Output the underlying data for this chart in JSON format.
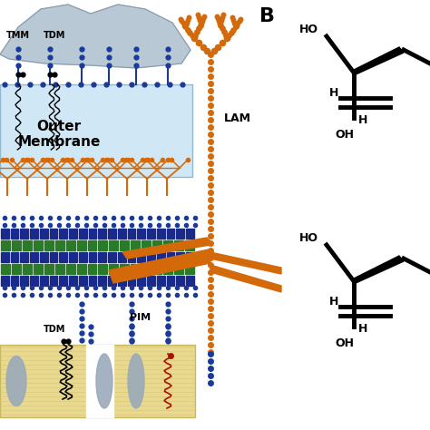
{
  "bg_color": "#ffffff",
  "outer_membrane_color": "#d0e8f5",
  "outer_membrane_border": "#90b8d0",
  "plasma_membrane_color": "#e8d890",
  "plasma_membrane_line": "#c8b860",
  "blue_dot_color": "#1a3a9a",
  "orange_color": "#d4690a",
  "green_block_color": "#2a7a2a",
  "dark_blue_block_color": "#1a2a8a",
  "red_mark_color": "#aa1100",
  "gray_shape_color": "#9aaabb",
  "cloud_color": "#b8c8d5",
  "text_color": "#000000",
  "label_TMM": "TMM",
  "label_TDM": "TDM",
  "label_outer": "Outer\nMembrane",
  "label_LAM": "LAM",
  "label_PIM": "PIM",
  "label_B": "B",
  "HO": "HO",
  "OH": "OH",
  "H": "H"
}
